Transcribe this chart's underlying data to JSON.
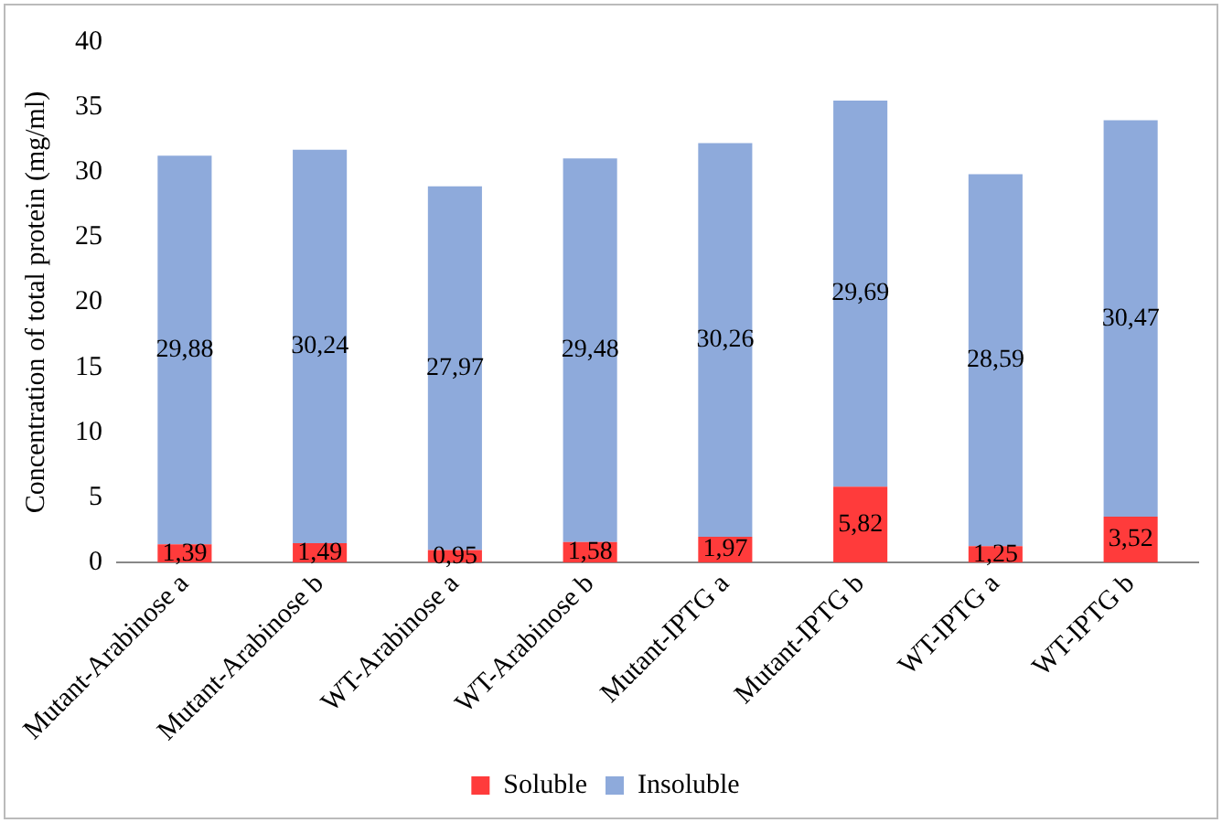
{
  "chart_data": {
    "type": "bar",
    "stacked": true,
    "ylabel": "Concentration of total protein (mg/ml)",
    "categories": [
      "Mutant-Arabinose a",
      "Mutant-Arabinose b",
      "WT-Arabinose a",
      "WT-Arabinose b",
      "Mutant-IPTG a",
      "Mutant-IPTG b",
      "WT-IPTG a",
      "WT-IPTG b"
    ],
    "series": [
      {
        "name": "Soluble",
        "color": "#ff3b3b",
        "values": [
          1.39,
          1.49,
          0.95,
          1.58,
          1.97,
          5.82,
          1.25,
          3.52
        ],
        "value_labels": [
          "1,39",
          "1,49",
          "0,95",
          "1,58",
          "1,97",
          "5,82",
          "1,25",
          "3,52"
        ]
      },
      {
        "name": "Insoluble",
        "color": "#8eaadb",
        "values": [
          29.88,
          30.24,
          27.97,
          29.48,
          30.26,
          29.69,
          28.59,
          30.47
        ],
        "value_labels": [
          "29,88",
          "30,24",
          "27,97",
          "29,48",
          "30,26",
          "29,69",
          "28,59",
          "30,47"
        ]
      }
    ],
    "ylim": [
      0,
      40
    ],
    "yticks": [
      0,
      5,
      10,
      15,
      20,
      25,
      30,
      35,
      40
    ],
    "grid": false,
    "legend": "bottom"
  }
}
